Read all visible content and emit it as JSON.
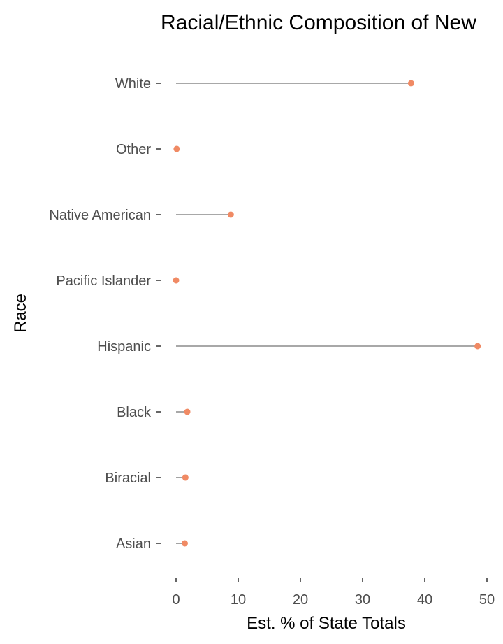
{
  "chart_data": {
    "type": "lollipop",
    "title": "Racial/Ethnic Composition of New",
    "xlabel": "Est. % of State Totals",
    "ylabel": "Race",
    "xlim": [
      0,
      50
    ],
    "xticks": [
      0,
      10,
      20,
      30,
      40,
      50
    ],
    "grid": false,
    "categories": [
      "White",
      "Other",
      "Native American",
      "Pacific Islander",
      "Hispanic",
      "Black",
      "Biracial",
      "Asian"
    ],
    "values": [
      37.8,
      0.1,
      8.8,
      0.0,
      48.5,
      1.8,
      1.5,
      1.4
    ],
    "colors": {
      "point": "#f08a64",
      "stem": "#8c8c8c",
      "tick": "#333333",
      "text": "#4d4d4d"
    }
  }
}
